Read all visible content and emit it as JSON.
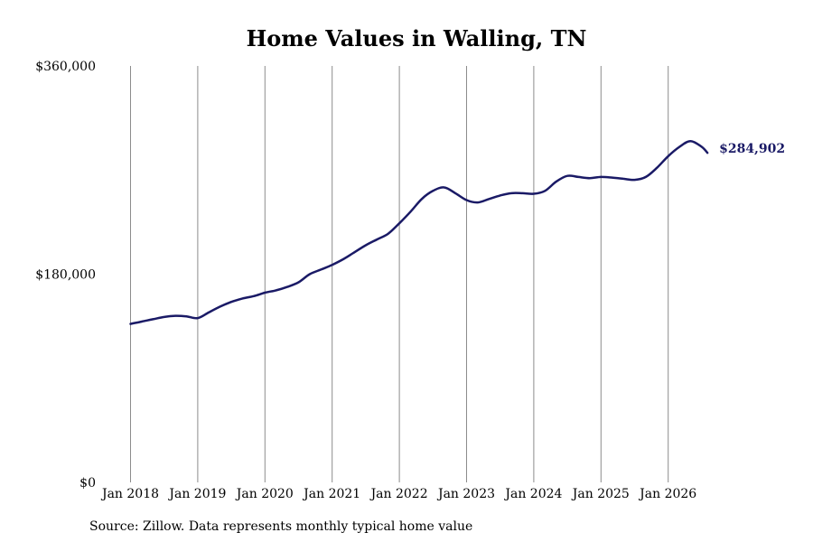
{
  "chart_data": {
    "type": "line",
    "title": "Home Values in Walling, TN",
    "subtitle": "",
    "xlabel": "",
    "ylabel": "",
    "source_note": "Source: Zillow. Data represents monthly typical home value",
    "ylim": [
      0,
      360000
    ],
    "y_ticks": [
      {
        "value": 0,
        "label": "$0"
      },
      {
        "value": 180000,
        "label": "$180,000"
      },
      {
        "value": 360000,
        "label": "$360,000"
      }
    ],
    "x_ticks": [
      "Jan 2018",
      "Jan 2019",
      "Jan 2020",
      "Jan 2021",
      "Jan 2022",
      "Jan 2023",
      "Jan 2024",
      "Jan 2025",
      "Jan 2026"
    ],
    "grid": "vertical lines at each January",
    "line_color": "#1a1a66",
    "end_label": "$284,902",
    "series": [
      {
        "x": [
          "2018-01",
          "2018-03",
          "2018-05",
          "2018-07",
          "2018-09",
          "2018-11",
          "2019-01",
          "2019-03",
          "2019-05",
          "2019-07",
          "2019-09",
          "2019-11",
          "2020-01",
          "2020-03",
          "2020-05",
          "2020-07",
          "2020-09",
          "2020-11",
          "2021-01",
          "2021-03",
          "2021-05",
          "2021-07",
          "2021-09",
          "2021-11",
          "2022-01",
          "2022-03",
          "2022-05",
          "2022-07",
          "2022-09",
          "2022-11",
          "2023-01",
          "2023-03",
          "2023-05",
          "2023-07",
          "2023-09",
          "2023-11",
          "2024-01",
          "2024-03",
          "2024-05",
          "2024-07",
          "2024-09",
          "2024-11",
          "2025-01",
          "2025-03",
          "2025-05",
          "2025-07",
          "2025-09",
          "2025-11",
          "2026-01",
          "2026-03",
          "2026-05",
          "2026-07",
          "2026-08"
        ],
        "values": [
          137000,
          139000,
          141000,
          143000,
          144000,
          143500,
          142000,
          147000,
          152000,
          156000,
          159000,
          161000,
          164000,
          166000,
          169000,
          173000,
          180000,
          184000,
          188000,
          193000,
          199000,
          205000,
          210000,
          215000,
          224000,
          234000,
          245000,
          252000,
          255000,
          250000,
          244000,
          242000,
          245000,
          248000,
          250000,
          250000,
          249500,
          252000,
          260000,
          265000,
          264000,
          263000,
          264000,
          263500,
          262500,
          261500,
          264000,
          272000,
          282000,
          290000,
          295000,
          290000,
          284902
        ]
      }
    ]
  }
}
